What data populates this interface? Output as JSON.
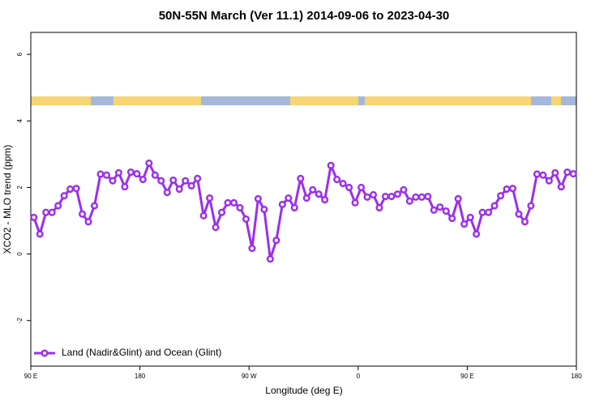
{
  "chart_data": {
    "type": "line",
    "title": "50N-55N March (Ver 11.1)   2014-09-06 to 2023-04-30",
    "x_label": "Longitude (deg E)",
    "y_label": "XCO2 - MLO trend (ppm)",
    "x": [
      92.5,
      97.5,
      102.5,
      107.5,
      112.5,
      117.5,
      122.5,
      127.5,
      132.5,
      137.5,
      142.5,
      147.5,
      152.5,
      157.5,
      162.5,
      167.5,
      172.5,
      177.5,
      182.5,
      187.5,
      192.5,
      197.5,
      202.5,
      207.5,
      212.5,
      217.5,
      222.5,
      227.5,
      232.5,
      237.5,
      242.5,
      247.5,
      252.5,
      257.5,
      262.5,
      267.5,
      272.5,
      277.5,
      282.5,
      287.5,
      292.5,
      297.5,
      302.5,
      307.5,
      312.5,
      317.5,
      322.5,
      327.5,
      332.5,
      337.5,
      342.5,
      347.5,
      352.5,
      357.5,
      362.5,
      367.5,
      372.5,
      377.5,
      382.5,
      387.5,
      392.5,
      397.5,
      402.5,
      407.5,
      412.5,
      417.5,
      422.5,
      427.5,
      432.5,
      437.5,
      442.5,
      447.5,
      452.5,
      457.5,
      462.5,
      467.5,
      472.5,
      477.5,
      482.5,
      487.5,
      492.5,
      497.5,
      502.5,
      507.5,
      512.5,
      517.5,
      522.5,
      527.5,
      532.5,
      537.5
    ],
    "series": [
      {
        "name": "Land (Nadir&Glint) and Ocean (Glint)",
        "color": "#9b30e8",
        "values": [
          1.1,
          0.6,
          1.25,
          1.25,
          1.45,
          1.75,
          1.95,
          1.97,
          1.2,
          0.97,
          1.45,
          2.4,
          2.37,
          2.2,
          2.44,
          2.02,
          2.46,
          2.41,
          2.24,
          2.73,
          2.37,
          2.2,
          1.85,
          2.22,
          1.95,
          2.2,
          2.05,
          2.27,
          1.15,
          1.68,
          0.8,
          1.25,
          1.54,
          1.54,
          1.39,
          1.05,
          0.17,
          1.66,
          1.34,
          -0.15,
          0.41,
          1.49,
          1.68,
          1.39,
          2.27,
          1.68,
          1.93,
          1.8,
          1.63,
          2.66,
          2.24,
          2.12,
          2.0,
          1.54,
          2.0,
          1.71,
          1.78,
          1.39,
          1.73,
          1.73,
          1.8,
          1.93,
          1.59,
          1.71,
          1.71,
          1.73,
          1.32,
          1.41,
          1.29,
          1.07,
          1.66,
          0.9,
          1.1,
          0.6,
          1.25,
          1.25,
          1.45,
          1.75,
          1.95,
          1.97,
          1.2,
          0.97,
          1.45,
          2.4,
          2.37,
          2.2,
          2.44,
          2.02,
          2.46,
          2.41
        ]
      }
    ],
    "xlim": [
      90,
      540
    ],
    "xticks": [
      {
        "value": 90,
        "label": "90 E"
      },
      180,
      {
        "value": 270,
        "label": "90 W"
      },
      {
        "value": 360,
        "label": "0"
      },
      {
        "value": 450,
        "label": "90 E"
      },
      {
        "value": 540,
        "label": "180"
      }
    ],
    "ylim": [
      -3.37,
      6.66
    ],
    "yticks": [
      -2,
      0,
      2,
      4,
      6
    ],
    "legend": "bottom-left"
  }
}
